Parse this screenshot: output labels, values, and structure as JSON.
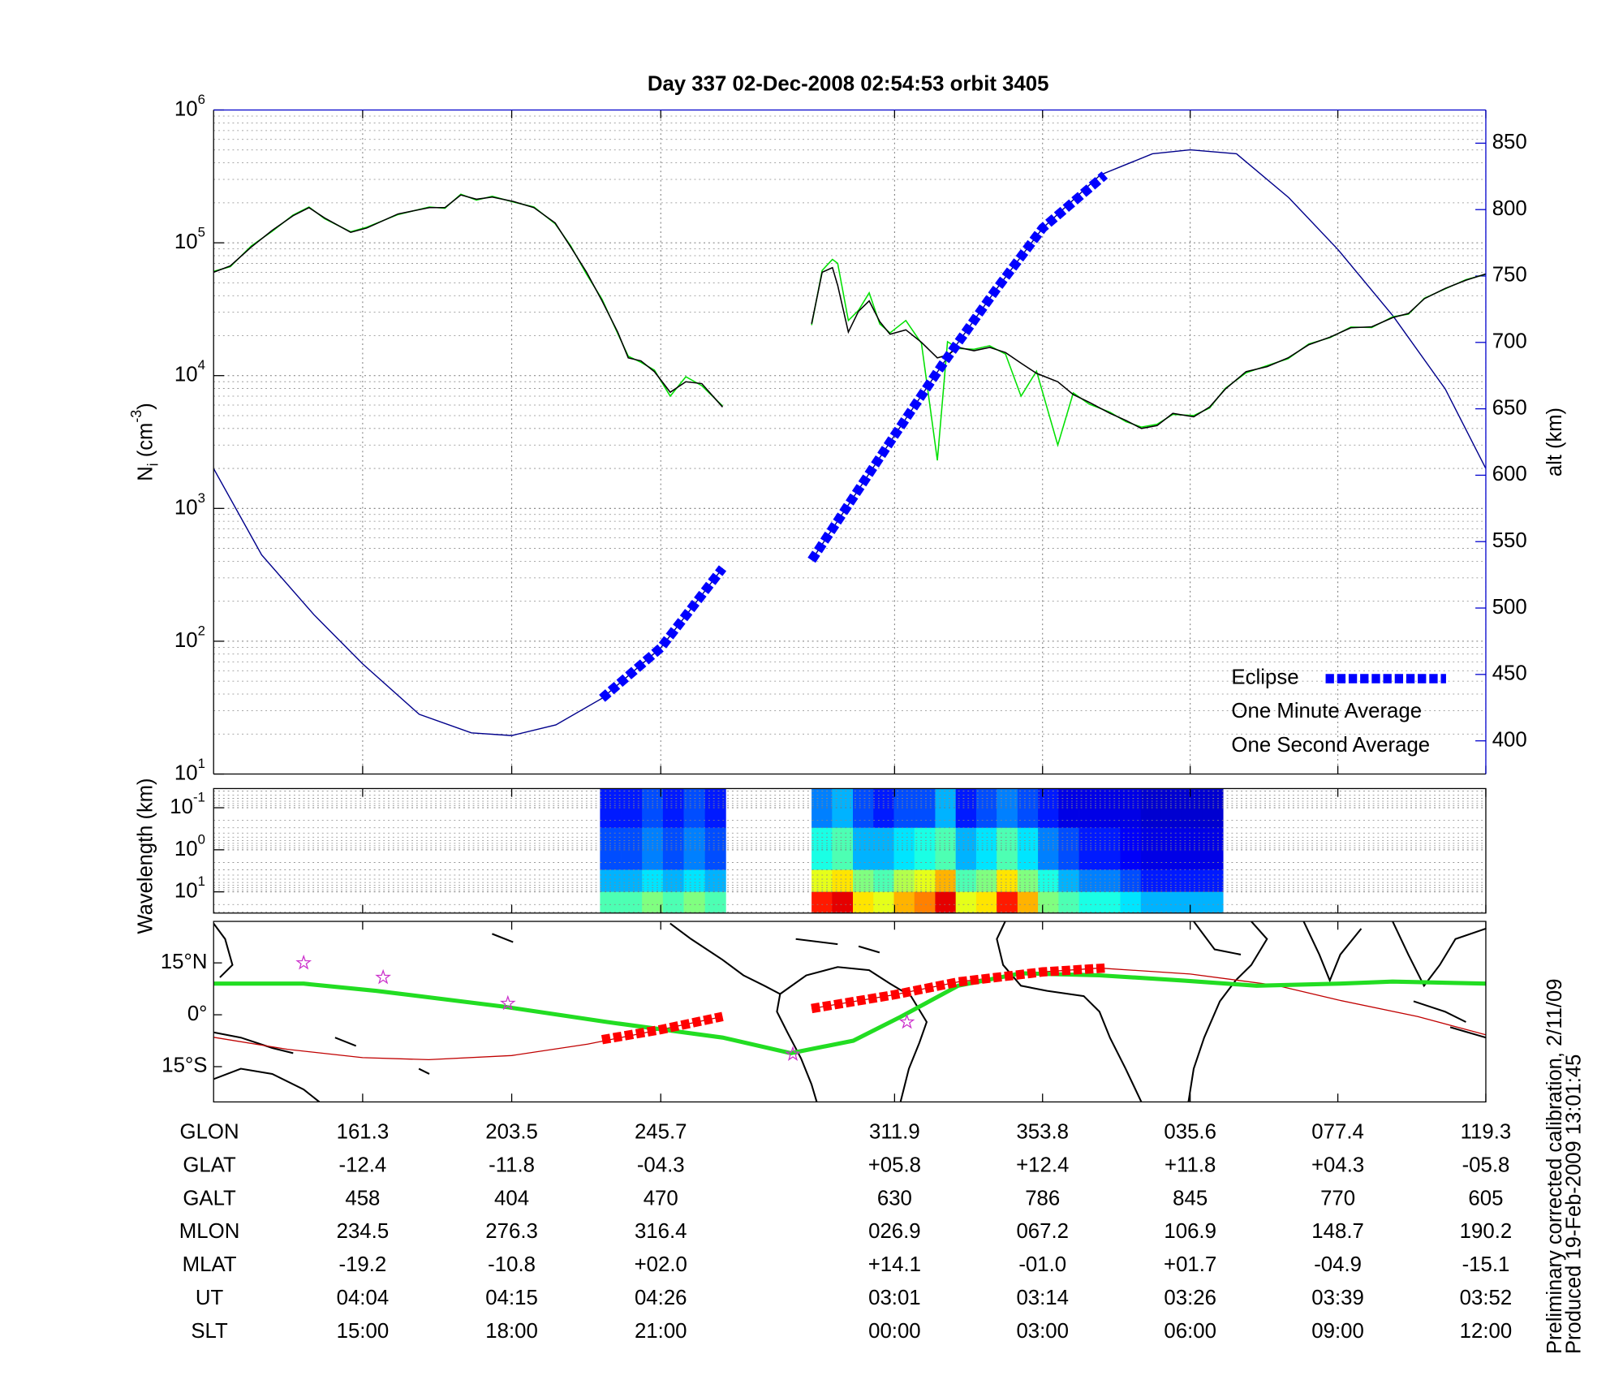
{
  "chart_data": [
    {
      "type": "line",
      "title": "Day 337  02-Dec-2008 02:54:53   orbit 3405",
      "ylabel": {
        "text": "N",
        "sub": "i",
        "unit": " (cm",
        "sup": "-3",
        "close": ")"
      },
      "y2label": "alt (km)",
      "xlim": [
        119.1,
        479.3
      ],
      "xticks": [
        161.3,
        203.5,
        245.7,
        311.9,
        353.8,
        395.6,
        437.4,
        479.3
      ],
      "ylim": [
        10,
        1000000
      ],
      "log_y": true,
      "yticks": [
        {
          "value": 10,
          "label": "10",
          "exponent": "1"
        },
        {
          "value": 100,
          "label": "10",
          "exponent": "2"
        },
        {
          "value": 1000,
          "label": "10",
          "exponent": "3"
        },
        {
          "value": 10000,
          "label": "10",
          "exponent": "4"
        },
        {
          "value": 100000,
          "label": "10",
          "exponent": "5"
        },
        {
          "value": 1000000,
          "label": "10",
          "exponent": "6"
        }
      ],
      "y2lim": [
        375,
        875
      ],
      "y2ticks": [
        400,
        450,
        500,
        550,
        600,
        650,
        700,
        750,
        800,
        850
      ],
      "grid": true,
      "legend": "lower right",
      "series": [
        {
          "name": "Eclipse",
          "color": "#0000ff",
          "axis": "y2",
          "style": "dashed",
          "x": [
            229.1,
            245.7,
            263.2,
            275,
            288.4,
            311.9,
            325.6,
            340.4,
            353.8,
            371.4
          ],
          "values": [
            432,
            470,
            530,
            null,
            536,
            630,
            684,
            739,
            786,
            826
          ]
        },
        {
          "name": "One Minute Average",
          "color": "#000000",
          "x": [
            119.1,
            123.8,
            129.8,
            135.7,
            141.6,
            146.1,
            150.5,
            157.9,
            162.4,
            171.3,
            180.2,
            184.6,
            189.1,
            193.5,
            198.0,
            203.9,
            209.8,
            215.8,
            220.2,
            224.7,
            229.1,
            233.5,
            236.5,
            240.1,
            243.9,
            248.4,
            252.8,
            257.3,
            263.2,
            275,
            288.4,
            291.4,
            294.3,
            295.8,
            298.8,
            301.7,
            304.7,
            307.7,
            310.6,
            315.1,
            319.5,
            324.0,
            326.9,
            329.9,
            334.4,
            338.8,
            343.3,
            347.7,
            352.1,
            358.1,
            362.5,
            367.0,
            372.9,
            377.4,
            381.8,
            386.2,
            390.7,
            396.6,
            401.1,
            405.5,
            411.4,
            417.4,
            423.3,
            429.2,
            435.2,
            441.1,
            447.0,
            453.0,
            457.4,
            461.9,
            467.8,
            473.7,
            479.3
          ],
          "values": [
            60000,
            67000,
            93000,
            124000,
            160000,
            184000,
            154000,
            120000,
            129000,
            165000,
            184000,
            184000,
            229000,
            213000,
            221000,
            205000,
            184000,
            141000,
            93000,
            60000,
            36500,
            21300,
            13600,
            12900,
            10700,
            7500,
            9000,
            8700,
            5800,
            null,
            24600,
            60000,
            65000,
            47800,
            21300,
            30500,
            36500,
            25500,
            20500,
            22100,
            17800,
            13600,
            14300,
            16300,
            15400,
            16300,
            14900,
            12400,
            10400,
            9000,
            7200,
            6300,
            5200,
            4600,
            4000,
            4200,
            5200,
            4900,
            5800,
            7900,
            10700,
            11700,
            13600,
            17100,
            19500,
            22900,
            23300,
            27400,
            29400,
            37900,
            45300,
            52300,
            58300
          ]
        },
        {
          "name": "One Second Average",
          "color": "#00e000",
          "x": [
            119.1,
            123.8,
            129.8,
            135.7,
            141.6,
            146.1,
            150.5,
            157.9,
            162.4,
            171.3,
            180.2,
            184.6,
            189.1,
            193.5,
            198.0,
            203.9,
            209.8,
            215.8,
            220.2,
            224.7,
            229.1,
            233.5,
            236.5,
            240.1,
            243.9,
            248.4,
            252.8,
            257.3,
            263.2,
            275,
            288.4,
            291.4,
            294.3,
            295.8,
            298.8,
            301.7,
            304.7,
            307.7,
            310.6,
            315.1,
            319.5,
            324.0,
            326.9,
            329.9,
            334.4,
            338.8,
            343.3,
            347.7,
            352.1,
            358.1,
            362.5,
            367.0,
            372.9,
            377.4,
            381.8,
            386.2,
            390.7,
            396.6,
            401.1,
            405.5,
            411.4,
            417.4,
            423.3,
            429.2,
            435.2,
            441.1,
            447.0,
            453.0,
            457.4,
            461.9,
            467.8,
            473.7,
            479.3
          ],
          "values": [
            61000,
            66000,
            95000,
            122000,
            162000,
            186000,
            152000,
            121000,
            131000,
            163000,
            186000,
            182000,
            232000,
            210000,
            224000,
            203000,
            186000,
            139000,
            95000,
            58000,
            37500,
            20800,
            14000,
            12600,
            11000,
            7000,
            9800,
            8400,
            5900,
            null,
            24000,
            62000,
            75000,
            70000,
            26000,
            31000,
            42000,
            24500,
            21000,
            26000,
            17500,
            2300,
            18000,
            16000,
            15800,
            16800,
            14500,
            7000,
            10800,
            3000,
            7400,
            6100,
            5300,
            4500,
            4100,
            4300,
            5100,
            5000,
            5700,
            8000,
            10500,
            11900,
            13400,
            17300,
            19300,
            23200,
            23000,
            27800,
            29000,
            38300,
            45000,
            52800,
            58000
          ]
        }
      ],
      "altitude_line": {
        "color": "#00008b",
        "axis": "y2",
        "x": [
          119.1,
          132.7,
          147.5,
          161.3,
          177.3,
          192.1,
          203.5,
          216.0,
          229.1,
          245.7,
          263.2,
          275,
          288.4,
          311.9,
          325.6,
          340.4,
          353.8,
          370.1,
          384.9,
          395.6,
          408.7,
          423.5,
          437.4,
          453.0,
          467.8,
          479.3
        ],
        "values": [
          605,
          540,
          495,
          458,
          420,
          406,
          404,
          412,
          432,
          470,
          530,
          null,
          536,
          630,
          684,
          739,
          786,
          826,
          842,
          845,
          842,
          809,
          770,
          720,
          665,
          605
        ]
      }
    },
    {
      "type": "heatmap",
      "ylabel": "Wavelength (km)",
      "xlim": [
        119.1,
        479.3
      ],
      "xticks": [
        161.3,
        203.5,
        245.7,
        311.9,
        353.8,
        395.6,
        437.4,
        479.3
      ],
      "ylim": [
        0.035,
        32
      ],
      "log_y": true,
      "invert_y": true,
      "yticks": [
        {
          "value": 0.1,
          "label": "10",
          "exponent": "-1"
        },
        {
          "value": 1,
          "label": "10",
          "exponent": "0"
        },
        {
          "value": 10,
          "label": "10",
          "exponent": "1"
        }
      ],
      "colormap": "jet",
      "y_edges": [
        0.035,
        0.3,
        3,
        10,
        32
      ],
      "blocks": [
        {
          "x_edges": [
            228.5,
            234.4,
            240.4,
            246.3,
            252.2,
            258.2,
            264.1
          ],
          "z": [
            [
              0.15,
              0.15,
              0.2,
              0.15,
              0.2,
              0.15
            ],
            [
              0.2,
              0.2,
              0.25,
              0.2,
              0.25,
              0.2
            ],
            [
              0.3,
              0.3,
              0.35,
              0.3,
              0.35,
              0.3
            ],
            [
              0.45,
              0.45,
              0.5,
              0.45,
              0.5,
              0.45
            ]
          ]
        },
        {
          "x_edges": [
            288.4,
            294.2,
            300.1,
            305.9,
            311.7,
            317.5,
            323.4,
            329.2,
            335.0,
            340.8,
            346.7,
            352.5,
            358.3,
            364.1,
            369.9,
            375.8,
            381.6,
            387.4,
            393.2,
            399.1,
            404.9
          ],
          "z": [
            [
              0.25,
              0.3,
              0.2,
              0.15,
              0.2,
              0.2,
              0.3,
              0.15,
              0.2,
              0.25,
              0.2,
              0.15,
              0.1,
              0.1,
              0.1,
              0.1,
              0.08,
              0.08,
              0.08,
              0.08
            ],
            [
              0.4,
              0.45,
              0.3,
              0.3,
              0.35,
              0.4,
              0.45,
              0.3,
              0.35,
              0.45,
              0.35,
              0.25,
              0.2,
              0.15,
              0.15,
              0.12,
              0.1,
              0.1,
              0.1,
              0.1
            ],
            [
              0.6,
              0.65,
              0.5,
              0.45,
              0.55,
              0.6,
              0.7,
              0.45,
              0.5,
              0.65,
              0.5,
              0.4,
              0.3,
              0.25,
              0.25,
              0.2,
              0.15,
              0.15,
              0.15,
              0.15
            ],
            [
              0.85,
              0.9,
              0.65,
              0.6,
              0.7,
              0.75,
              0.9,
              0.6,
              0.65,
              0.85,
              0.7,
              0.5,
              0.45,
              0.4,
              0.4,
              0.35,
              0.3,
              0.3,
              0.3,
              0.3
            ]
          ]
        }
      ]
    },
    {
      "type": "map",
      "xlim": [
        119.1,
        479.3
      ],
      "xticks": [
        161.3,
        203.5,
        245.7,
        311.9,
        353.8,
        395.6,
        437.4,
        479.3
      ],
      "ylim": [
        -25.2,
        27
      ],
      "yticks": [
        {
          "value": 15,
          "label": "15°N"
        },
        {
          "value": 0,
          "label": "0°"
        },
        {
          "value": -15,
          "label": "15°S"
        }
      ],
      "magnetic_equator": {
        "color": "#22dd22",
        "x": [
          119.1,
          144.6,
          165.3,
          200.9,
          230.5,
          263.2,
          282.5,
          300.2,
          313.6,
          329.9,
          347.7,
          369.9,
          393.6,
          414.4,
          438.1,
          452.9,
          479.3
        ],
        "values": [
          9,
          9,
          6.9,
          2.4,
          -2.1,
          -6.6,
          -11.1,
          -7.5,
          -0.6,
          8.4,
          12,
          11.4,
          9.9,
          8.4,
          9,
          9.6,
          9
        ]
      },
      "ground_track": {
        "color": "#c00000",
        "x": [
          119.1,
          140,
          161.3,
          180,
          203.5,
          225,
          245.7,
          263.2,
          275,
          288.4,
          311.9,
          330,
          353.8,
          370,
          395.6,
          420,
          437.4,
          460,
          479.3
        ],
        "values": [
          -6.5,
          -10,
          -12.4,
          -13,
          -11.8,
          -8.5,
          -4.3,
          -0.5,
          null,
          1.8,
          5.8,
          9.5,
          12.4,
          13.5,
          11.8,
          8.5,
          4.3,
          -0.5,
          -5.8
        ]
      },
      "eclipse_track": {
        "color": "#ff0000",
        "x": [
          229.1,
          245.7,
          263.2,
          275,
          288.4,
          311.9,
          330,
          353.8,
          371.4
        ],
        "values": [
          -7.2,
          -4.3,
          -0.5,
          null,
          1.8,
          5.8,
          9.5,
          12.4,
          13.5
        ]
      },
      "stations": {
        "color": "#cc33cc",
        "x": [
          144.6,
          167.1,
          202.4,
          283.1,
          315.4
        ],
        "values": [
          15,
          10.8,
          3.3,
          -11.4,
          -2.1
        ]
      }
    }
  ],
  "table": {
    "rows": [
      {
        "label": "GLON",
        "values": [
          "161.3",
          "203.5",
          "245.7",
          "311.9",
          "353.8",
          "035.6",
          "077.4",
          "119.3"
        ]
      },
      {
        "label": "GLAT",
        "values": [
          "-12.4",
          "-11.8",
          "-04.3",
          "+05.8",
          "+12.4",
          "+11.8",
          "+04.3",
          "-05.8"
        ]
      },
      {
        "label": "GALT",
        "values": [
          "458",
          "404",
          "470",
          "630",
          "786",
          "845",
          "770",
          "605"
        ]
      },
      {
        "label": "MLON",
        "values": [
          "234.5",
          "276.3",
          "316.4",
          "026.9",
          "067.2",
          "106.9",
          "148.7",
          "190.2"
        ]
      },
      {
        "label": "MLAT",
        "values": [
          "-19.2",
          "-10.8",
          "+02.0",
          "+14.1",
          "-01.0",
          "+01.7",
          "-04.9",
          "-15.1"
        ]
      },
      {
        "label": "UT",
        "values": [
          "04:04",
          "04:15",
          "04:26",
          "03:01",
          "03:14",
          "03:26",
          "03:39",
          "03:52"
        ]
      },
      {
        "label": "SLT",
        "values": [
          "15:00",
          "18:00",
          "21:00",
          "00:00",
          "03:00",
          "06:00",
          "09:00",
          "12:00"
        ]
      }
    ]
  },
  "footnote": [
    "Preliminary corrected calibration, 2/11/09",
    "Produced 19-Feb-2009 13:01:45"
  ]
}
